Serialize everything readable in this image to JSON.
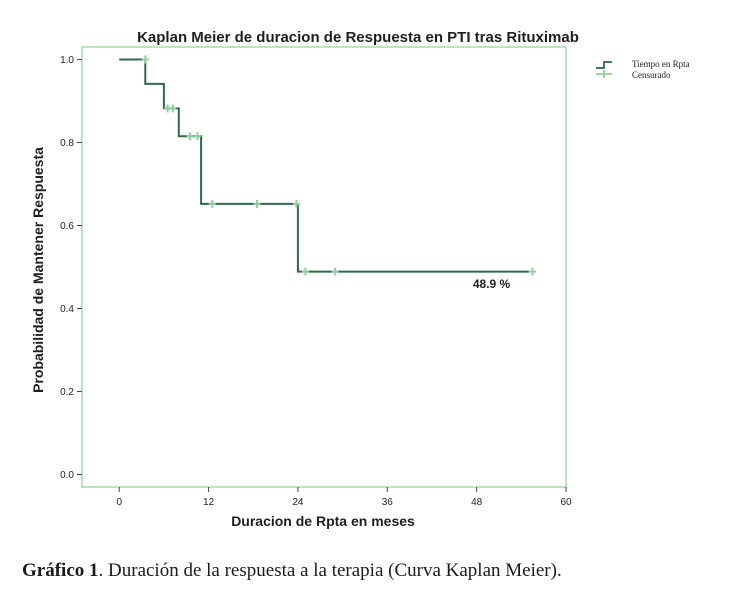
{
  "chart_data": {
    "type": "line",
    "subtype": "kaplan-meier-step",
    "title": "Kaplan Meier de duracion de Respuesta en PTI tras Rituximab",
    "xlabel": "Duracion de Rpta en meses",
    "ylabel": "Probabilidad de Mantener Respuesta",
    "xlim": [
      -5,
      60
    ],
    "ylim": [
      -0.03,
      1.03
    ],
    "xticks": [
      0,
      12,
      24,
      36,
      48,
      60
    ],
    "yticks": [
      0.0,
      0.2,
      0.4,
      0.6,
      0.8,
      1.0
    ],
    "grid": false,
    "legend_position": "top-right",
    "legend": [
      {
        "label": "Tiempo en Rpta",
        "kind": "step-line"
      },
      {
        "label": "Censurado",
        "kind": "censor-marker"
      }
    ],
    "series": [
      {
        "name": "Tiempo en Rpta",
        "x": [
          0,
          3.5,
          3.5,
          6,
          6,
          8,
          8,
          11,
          11,
          24,
          24,
          55
        ],
        "y": [
          1.0,
          1.0,
          0.941,
          0.941,
          0.882,
          0.882,
          0.815,
          0.815,
          0.652,
          0.652,
          0.489,
          0.489
        ]
      },
      {
        "name": "Censurado",
        "x": [
          3.5,
          6.5,
          7.2,
          9.5,
          10.5,
          12.5,
          18.5,
          23.8,
          25,
          29,
          55.5
        ],
        "y": [
          1.0,
          0.882,
          0.882,
          0.815,
          0.815,
          0.652,
          0.652,
          0.652,
          0.489,
          0.489,
          0.489
        ]
      }
    ],
    "annotations": [
      {
        "text": "48.9 %",
        "x": 50,
        "y": 0.45
      }
    ],
    "colors": {
      "step_line": "#2e6b4a",
      "censor_marker": "#8fd39a",
      "frame": "#a8d8ad",
      "axis": "#444444"
    }
  },
  "caption": {
    "bold": "Gráfico 1",
    "text": ". Duración de la respuesta a la terapia (Curva Kaplan Meier)."
  }
}
